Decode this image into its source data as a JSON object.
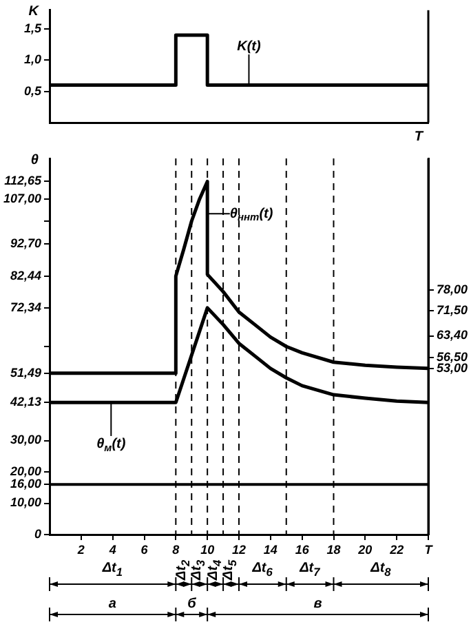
{
  "chart_data": [
    {
      "type": "step",
      "ylabel": "K",
      "xlabel": "T",
      "x": [
        0,
        8,
        10,
        24
      ],
      "xlim": [
        0,
        24
      ],
      "ylim": [
        0,
        1.8
      ],
      "series": [
        {
          "name": "K(t)",
          "color": "#000000",
          "values": [
            0.6,
            1.4,
            0.6,
            0.6
          ]
        }
      ],
      "yticks": [
        {
          "value": 0.5,
          "label": "0,5"
        },
        {
          "value": 1,
          "label": "1,0"
        },
        {
          "value": 1.5,
          "label": "1,5"
        }
      ],
      "tick_labels": "y"
    },
    {
      "type": "line",
      "ylabel": "θ",
      "xlim": [
        0,
        24
      ],
      "ylim": [
        0,
        120
      ],
      "y2lim": [
        0,
        120
      ],
      "xticks": [
        2,
        4,
        6,
        8,
        10,
        12,
        14,
        16,
        18,
        20,
        22,
        {
          "value": 24,
          "label": "T"
        }
      ],
      "yticks": [
        0,
        {
          "value": 10,
          "label": "10,00"
        },
        {
          "value": 16,
          "label": "16,00"
        },
        {
          "value": 20,
          "label": "20,00"
        },
        {
          "value": 30,
          "label": "30,00"
        },
        {
          "value": 42.13,
          "label": "42,13"
        },
        {
          "value": 51.49,
          "label": "51,49"
        },
        {
          "value": 60,
          "label": null
        },
        {
          "value": 72.34,
          "label": "72,34"
        },
        {
          "value": 82.44,
          "label": "82,44"
        },
        {
          "value": 92.7,
          "label": "92,70"
        },
        {
          "value": 100,
          "label": null
        },
        {
          "value": 107,
          "label": "107,00"
        },
        {
          "value": 112.65,
          "label": "112,65"
        }
      ],
      "y2ticks": [
        {
          "value": 78,
          "label": "78,00"
        },
        {
          "value": 71.5,
          "label": "71,50"
        },
        {
          "value": 63.4,
          "label": "63,40"
        },
        {
          "value": 56.5,
          "label": "56,50"
        },
        {
          "value": 53,
          "label": "53,00"
        }
      ],
      "series": [
        {
          "name": "θ$_{ннт}$(t)",
          "color": "#000000",
          "x": [
            0,
            8,
            8,
            8.5,
            9,
            9.5,
            10,
            10,
            11,
            12,
            13,
            14,
            15,
            16,
            18,
            20,
            22,
            24
          ],
          "values": [
            51.49,
            51.49,
            82.44,
            91,
            100,
            107,
            112.65,
            83,
            77.5,
            71,
            67,
            63,
            60,
            58,
            55,
            54,
            53.4,
            53
          ]
        },
        {
          "name": "θ$_{м}$(t)",
          "color": "#000000",
          "x": [
            0,
            8,
            10,
            11,
            12,
            13,
            14,
            15,
            16,
            18,
            20,
            22,
            24
          ],
          "values": [
            42.13,
            42.13,
            72.34,
            67,
            61,
            57,
            53,
            50,
            47.5,
            44.6,
            43.5,
            42.6,
            42.13
          ]
        }
      ],
      "ref_lines": [
        {
          "axis": "x",
          "value": 8,
          "line_style": "dashed"
        },
        {
          "axis": "x",
          "value": 9,
          "line_style": "dashed"
        },
        {
          "axis": "x",
          "value": 10,
          "line_style": "dashed"
        },
        {
          "axis": "x",
          "value": 11,
          "line_style": "dashed"
        },
        {
          "axis": "x",
          "value": 12,
          "line_style": "dashed"
        },
        {
          "axis": "x",
          "value": 15,
          "line_style": "dashed"
        },
        {
          "axis": "x",
          "value": 18,
          "line_style": "dashed"
        },
        {
          "axis": "y",
          "value": 16
        }
      ],
      "annotations": [
        "Δt$_{1}$",
        "Δt$_{2}$",
        "Δt$_{3}$",
        "Δt$_{4}$",
        "Δt$_{5}$",
        "Δt$_{6}$",
        "Δt$_{7}$",
        "Δt$_{8}$",
        "а",
        "б",
        "в"
      ]
    }
  ]
}
